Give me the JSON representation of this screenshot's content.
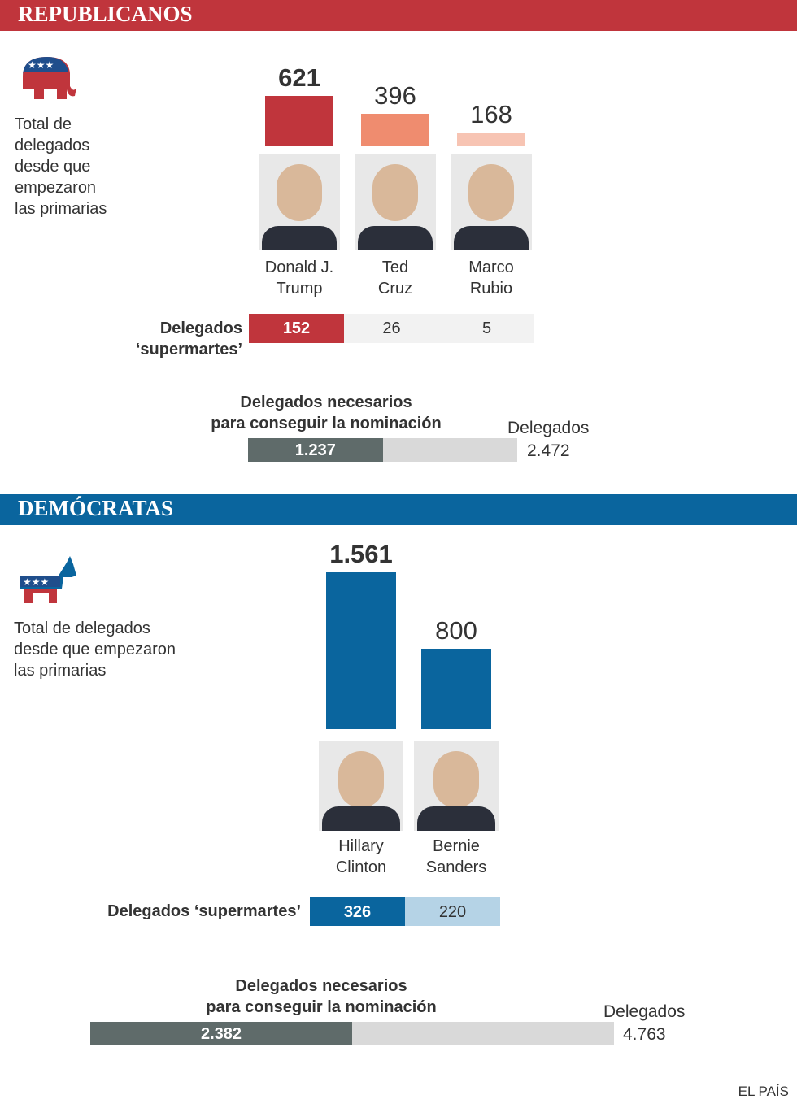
{
  "chart_data": [
    {
      "type": "bar",
      "section": "REPUBLICANOS",
      "header_color": "#c0353c",
      "title": "Total de\ndelegados\ndesde que\nempezaron\nlas primarias",
      "categories": [
        "Donald J.\nTrump",
        "Ted\nCruz",
        "Marco\nRubio"
      ],
      "values": [
        621,
        396,
        168
      ],
      "colors": [
        "#c0353c",
        "#ef8c6f",
        "#f7c4b3"
      ],
      "ylim": [
        0,
        1000
      ]
    },
    {
      "type": "table",
      "label": "Delegados\n‘supermartes’",
      "values": [
        152,
        26,
        5
      ],
      "colors": [
        "#c0353c",
        "#f2f2f2",
        "#f2f2f2"
      ]
    },
    {
      "type": "progress",
      "title": "Delegados necesarios\npara conseguir la nominación",
      "values": [
        1237
      ],
      "value_labels": [
        "1.237"
      ],
      "color": "#5f6b6a",
      "xlim": [
        0,
        2472
      ],
      "xlabel": "Delegados",
      "xticks": [
        {
          "value": 2472,
          "label": "2.472"
        }
      ]
    },
    {
      "type": "bar",
      "section": "DEMÓCRATAS",
      "header_color": "#0a659e",
      "title": "Total de delegados\ndesde que empezaron\nlas primarias",
      "categories": [
        "Hillary\nClinton",
        "Bernie\nSanders"
      ],
      "values": [
        1561,
        800
      ],
      "value_labels": [
        "1.561",
        "800"
      ],
      "colors": [
        "#0a659e",
        "#0a659e"
      ],
      "ylim": [
        0,
        1600
      ]
    },
    {
      "type": "table",
      "label": "Delegados ‘supermartes’",
      "values": [
        326,
        220
      ],
      "colors": [
        "#0a659e",
        "#b5d3e6"
      ]
    },
    {
      "type": "progress",
      "title": "Delegados necesarios\npara conseguir la nominación",
      "values": [
        2382
      ],
      "value_labels": [
        "2.382"
      ],
      "color": "#5f6b6a",
      "xlim": [
        0,
        4763
      ],
      "xlabel": "Delegados",
      "xticks": [
        {
          "value": 4763,
          "label": "4.763"
        }
      ]
    }
  ],
  "source": "EL PAÍS"
}
